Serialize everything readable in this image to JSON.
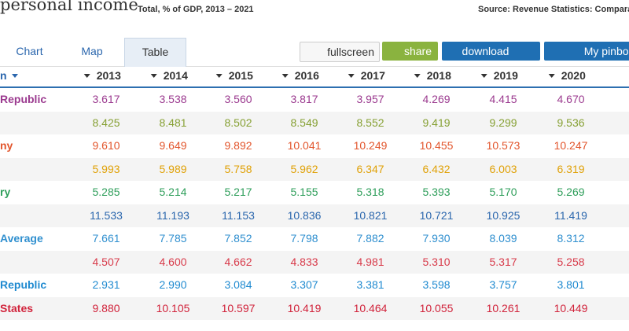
{
  "header": {
    "title": "personal income",
    "subtitle": "Total, % of GDP, 2013 – 2021",
    "source": "Source: Revenue Statistics: Comparati"
  },
  "tabs": [
    "Chart",
    "Map",
    "Table"
  ],
  "active_tab": 2,
  "buttons": [
    "fullscreen",
    "share",
    "download",
    "My pinboar"
  ],
  "table": {
    "columns": [
      "n",
      "2013",
      "2014",
      "2015",
      "2016",
      "2017",
      "2018",
      "2019",
      "2020"
    ],
    "rows": [
      {
        "label": "Republic",
        "color": "#9b3a8f",
        "values": [
          "3.617",
          "3.538",
          "3.560",
          "3.817",
          "3.957",
          "4.269",
          "4.415",
          "4.670"
        ]
      },
      {
        "label": null,
        "color": "#86a033",
        "values": [
          "8.425",
          "8.481",
          "8.502",
          "8.549",
          "8.552",
          "9.419",
          "9.299",
          "9.536"
        ]
      },
      {
        "label": "ny",
        "color": "#e2552c",
        "values": [
          "9.610",
          "9.649",
          "9.892",
          "10.041",
          "10.249",
          "10.455",
          "10.573",
          "10.247"
        ]
      },
      {
        "label": null,
        "color": "#e0a106",
        "values": [
          "5.993",
          "5.989",
          "5.758",
          "5.962",
          "6.347",
          "6.432",
          "6.003",
          "6.319"
        ]
      },
      {
        "label": "ry",
        "color": "#2e9e5a",
        "values": [
          "5.285",
          "5.214",
          "5.217",
          "5.155",
          "5.318",
          "5.393",
          "5.170",
          "5.269"
        ]
      },
      {
        "label": null,
        "color": "#2a66ad",
        "values": [
          "11.533",
          "11.193",
          "11.153",
          "10.836",
          "10.821",
          "10.721",
          "10.925",
          "11.419"
        ]
      },
      {
        "label": "Average",
        "color": "#2f8fcf",
        "values": [
          "7.661",
          "7.785",
          "7.852",
          "7.798",
          "7.882",
          "7.930",
          "8.039",
          "8.312"
        ]
      },
      {
        "label": null,
        "color": "#d83a4a",
        "values": [
          "4.507",
          "4.600",
          "4.662",
          "4.833",
          "4.981",
          "5.310",
          "5.317",
          "5.258"
        ]
      },
      {
        "label": "Republic",
        "color": "#1f8ad0",
        "values": [
          "2.931",
          "2.990",
          "3.084",
          "3.307",
          "3.381",
          "3.598",
          "3.757",
          "3.801"
        ]
      },
      {
        "label": "States",
        "color": "#d1233b",
        "values": [
          "9.880",
          "10.105",
          "10.597",
          "10.419",
          "10.464",
          "10.055",
          "10.261",
          "10.449"
        ]
      }
    ]
  }
}
